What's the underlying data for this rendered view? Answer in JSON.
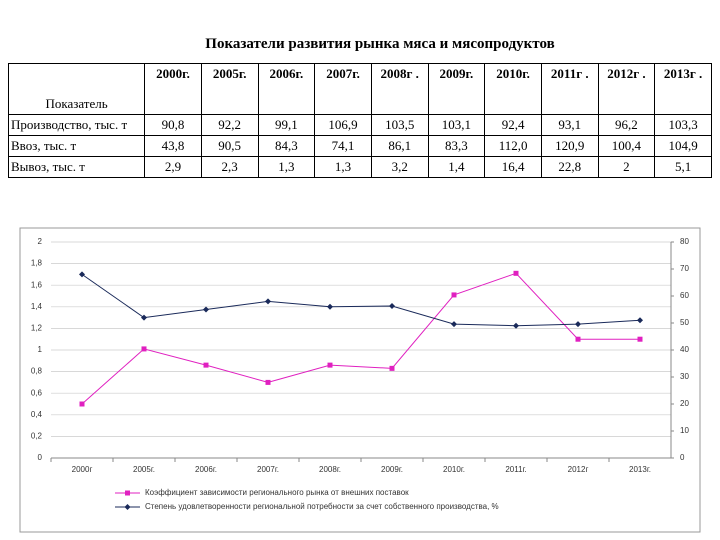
{
  "title": "Показатели развития рынка мяса и мясопродуктов",
  "table": {
    "header": [
      "Показатель",
      "2000г.",
      "2005г.",
      "2006г.",
      "2007г.",
      "2008г .",
      "2009г.",
      "2010г.",
      "2011г .",
      "2012г .",
      "2013г ."
    ],
    "rows": [
      [
        "Производство, тыс. т",
        "90,8",
        "92,2",
        "99,1",
        "106,9",
        "103,5",
        "103,1",
        "92,4",
        "93,1",
        "96,2",
        "103,3"
      ],
      [
        "Ввоз, тыс. т",
        "43,8",
        "90,5",
        "84,3",
        "74,1",
        "86,1",
        "83,3",
        "112,0",
        "120,9",
        "100,4",
        "104,9"
      ],
      [
        "Вывоз, тыс. т",
        "2,9",
        "2,3",
        "1,3",
        "1,3",
        "3,2",
        "1,4",
        "16,4",
        "22,8",
        "2",
        "5,1"
      ]
    ]
  },
  "chart_data": {
    "type": "line",
    "categories": [
      "2000г",
      "2005г.",
      "2006г.",
      "2007г.",
      "2008г.",
      "2009г.",
      "2010г.",
      "2011г.",
      "2012г",
      "2013г."
    ],
    "series": [
      {
        "name": "Коэффициент зависимости регионального рынка от внешних поставок",
        "color": "#e020c0",
        "marker": "square",
        "values": [
          0.5,
          1.01,
          0.86,
          0.7,
          0.86,
          0.83,
          1.51,
          1.71,
          1.1,
          1.1
        ]
      },
      {
        "name": "Степень удовлетворенности региональной потребности за счет собственного производства, %",
        "color": "#1a2a5a",
        "marker": "diamond",
        "axis": "y2",
        "values": [
          68,
          52,
          55,
          58,
          56,
          56.3,
          49.6,
          49,
          49.6,
          51
        ]
      }
    ],
    "ylim": [
      0,
      2
    ],
    "yticks": [
      0,
      {
        "value": 0.2,
        "label": "0,2"
      },
      {
        "value": 0.4,
        "label": "0,4"
      },
      {
        "value": 0.6,
        "label": "0,6"
      },
      {
        "value": 0.8,
        "label": "0,8"
      },
      1,
      {
        "value": 1.2,
        "label": "1,2"
      },
      {
        "value": 1.4,
        "label": "1,4"
      },
      {
        "value": 1.6,
        "label": "1,6"
      },
      {
        "value": 1.8,
        "label": "1,8"
      },
      2
    ],
    "y2lim": [
      0,
      80
    ],
    "y2ticks": [
      0,
      10,
      20,
      30,
      40,
      50,
      60,
      70,
      80
    ],
    "grid": true
  }
}
